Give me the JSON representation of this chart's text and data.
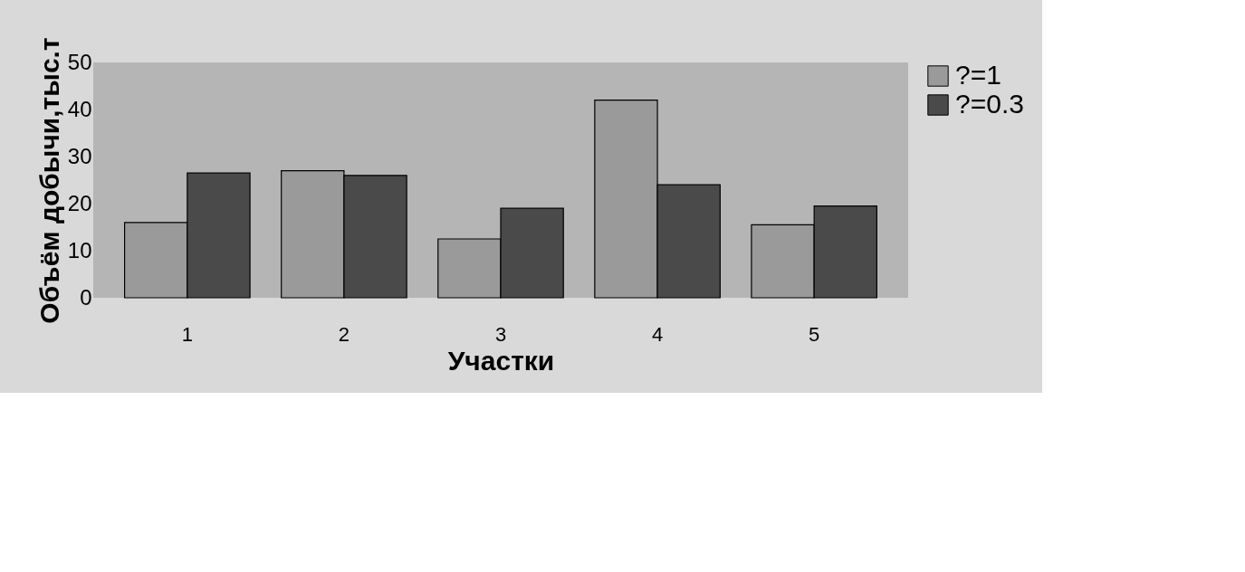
{
  "chart_data": {
    "type": "bar",
    "xlabel": "Участки",
    "ylabel": "Объём добычи,тыс.т",
    "categories": [
      "1",
      "2",
      "3",
      "4",
      "5"
    ],
    "series": [
      {
        "name": "?=1",
        "color": "#9a9a9a",
        "values": [
          16,
          27,
          12.5,
          42,
          15.5
        ]
      },
      {
        "name": "?=0.3",
        "color": "#4a4a4a",
        "values": [
          26.5,
          26,
          19,
          24,
          19.5
        ]
      }
    ],
    "ylim": [
      0,
      50
    ],
    "yticks": [
      0,
      10,
      20,
      30,
      40,
      50
    ],
    "grid": false,
    "legend": "right"
  }
}
